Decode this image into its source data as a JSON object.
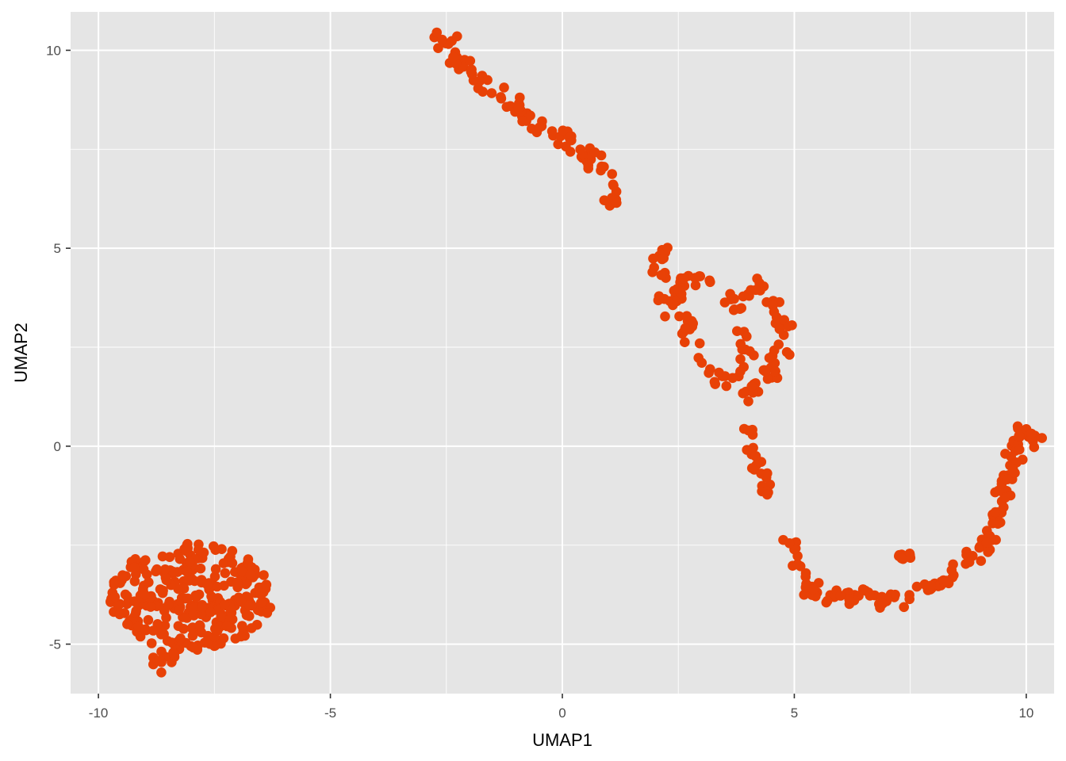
{
  "colors": {
    "panel_background": "#e5e5e5",
    "gridline": "#ffffff",
    "point": "#e84106",
    "tick": "#333333",
    "tick_label": "#4d4d4d"
  },
  "chart_data": {
    "type": "scatter",
    "title": "",
    "xlabel": "UMAP1",
    "ylabel": "UMAP2",
    "xlim": [
      -10.6,
      10.6
    ],
    "ylim": [
      -6.25,
      10.97
    ],
    "x_ticks": [
      -10,
      -5,
      0,
      5,
      10
    ],
    "x_tick_labels": [
      "-10",
      "-5",
      "0",
      "5",
      "10"
    ],
    "y_ticks": [
      -5,
      0,
      5,
      10
    ],
    "y_tick_labels": [
      "-5",
      "0",
      "5",
      "10"
    ],
    "grid": true,
    "legend": "none",
    "point_color": "#e84106",
    "clusters": [
      {
        "path": [
          [
            -2.95,
            10.1
          ],
          [
            -2.8,
            10.3
          ],
          [
            -2.6,
            10.4
          ],
          [
            -2.4,
            10.3
          ],
          [
            -2.2,
            10.1
          ],
          [
            -2.4,
            9.8
          ],
          [
            -2.1,
            9.6
          ],
          [
            -1.8,
            9.3
          ],
          [
            -1.6,
            9.1
          ],
          [
            -1.3,
            8.8
          ],
          [
            -1.0,
            8.6
          ],
          [
            -0.7,
            8.3
          ],
          [
            -0.3,
            8.0
          ],
          [
            0.0,
            7.8
          ],
          [
            0.3,
            7.6
          ],
          [
            0.5,
            7.3
          ],
          [
            0.8,
            7.0
          ],
          [
            1.0,
            6.5
          ],
          [
            1.2,
            6.0
          ]
        ],
        "n": 90,
        "spread": 0.12
      },
      {
        "path": [
          [
            2.1,
            5.05
          ],
          [
            2.2,
            4.6
          ],
          [
            2.15,
            4.1
          ],
          [
            2.3,
            3.6
          ],
          [
            2.5,
            3.3
          ],
          [
            2.7,
            3.0
          ],
          [
            2.85,
            2.5
          ],
          [
            3.0,
            2.0
          ],
          [
            3.3,
            1.7
          ],
          [
            3.6,
            1.7
          ],
          [
            3.8,
            1.9
          ],
          [
            4.0,
            2.3
          ],
          [
            3.9,
            2.8
          ],
          [
            3.8,
            3.3
          ],
          [
            3.9,
            3.9
          ],
          [
            4.3,
            4.0
          ],
          [
            4.6,
            3.5
          ],
          [
            4.85,
            2.9
          ],
          [
            4.7,
            2.3
          ],
          [
            4.4,
            1.7
          ],
          [
            4.1,
            1.3
          ],
          [
            3.9,
            1.2
          ]
        ],
        "n": 110,
        "spread": 0.12
      },
      {
        "path": [
          [
            2.4,
            3.6
          ],
          [
            2.6,
            4.0
          ],
          [
            2.8,
            4.3
          ],
          [
            3.1,
            4.2
          ]
        ],
        "n": 18,
        "spread": 0.1
      },
      {
        "path": [
          [
            3.95,
            0.5
          ],
          [
            4.1,
            0.0
          ],
          [
            4.25,
            -0.5
          ],
          [
            4.4,
            -1.0
          ],
          [
            4.45,
            -1.3
          ]
        ],
        "n": 22,
        "spread": 0.06
      },
      {
        "path": [
          [
            4.9,
            -2.35
          ],
          [
            5.1,
            -2.9
          ],
          [
            5.3,
            -3.4
          ],
          [
            5.5,
            -3.8
          ],
          [
            6.0,
            -3.75
          ],
          [
            6.5,
            -3.8
          ],
          [
            7.0,
            -3.85
          ],
          [
            7.5,
            -3.7
          ],
          [
            8.0,
            -3.55
          ],
          [
            8.4,
            -3.3
          ],
          [
            8.7,
            -3.0
          ],
          [
            9.0,
            -2.6
          ],
          [
            9.3,
            -2.0
          ],
          [
            9.5,
            -1.4
          ],
          [
            9.6,
            -0.8
          ],
          [
            9.7,
            -0.3
          ],
          [
            9.8,
            0.2
          ],
          [
            10.0,
            0.4
          ],
          [
            10.2,
            0.1
          ]
        ],
        "n": 150,
        "spread": 0.1
      },
      {
        "path": [
          [
            7.2,
            -2.9
          ],
          [
            7.4,
            -2.7
          ],
          [
            7.55,
            -2.65
          ]
        ],
        "n": 8,
        "spread": 0.08
      },
      {
        "blob": {
          "cx": -8.0,
          "cy": -3.8,
          "rx": 1.75,
          "ry": 1.35
        },
        "n": 300
      },
      {
        "path": [
          [
            -8.85,
            -5.25
          ],
          [
            -8.6,
            -5.45
          ],
          [
            -8.4,
            -5.2
          ]
        ],
        "n": 12,
        "spread": 0.1
      }
    ]
  }
}
